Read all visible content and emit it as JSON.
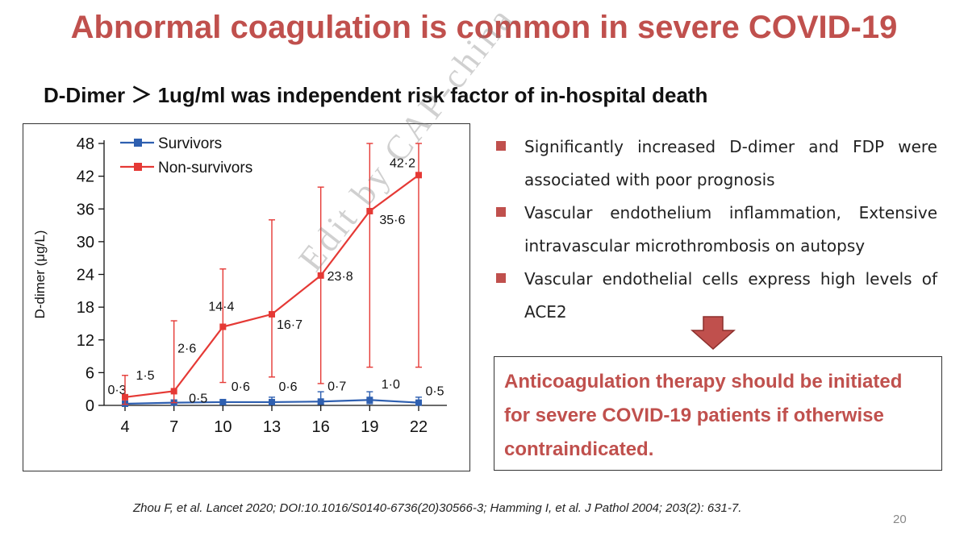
{
  "slide": {
    "title": "Abnormal coagulation is common in severe COVID-19",
    "subtitle": "D-Dimer ＞ 1ug/ml was independent risk factor of in-hospital death",
    "title_color": "#c0504d",
    "bullets": [
      "Significantly increased D-dimer and FDP were associated with poor prognosis",
      "Vascular endothelium inflammation, Extensive intravascular microthrombosis on autopsy",
      "Vascular endothelial cells express high levels of ACE2"
    ],
    "arrow_icon": "down-arrow-icon",
    "callout": "Anticoagulation therapy should be initiated for severe COVID-19 patients if otherwise contraindicated.",
    "citation": "Zhou F, et al. Lancet  2020; DOI:10.1016/S0140-6736(20)30566-3; Hamming I, et al.  J Pathol 2004; 203(2): 631-7.",
    "page_number": "20",
    "watermark": "Edit by CAP-china"
  },
  "chart_data": {
    "type": "line",
    "x": [
      4,
      7,
      10,
      13,
      16,
      19,
      22
    ],
    "xticks": [
      "4",
      "7",
      "10",
      "13",
      "16",
      "19",
      "22"
    ],
    "yticks": [
      "0",
      "6",
      "12",
      "18",
      "24",
      "30",
      "36",
      "42",
      "48"
    ],
    "ylim": [
      0,
      48
    ],
    "xlabel": "",
    "ylabel": "D-dimer (μg/L)",
    "legend_position": "top-left",
    "series": [
      {
        "name": "Survivors",
        "color": "#2e5fb0",
        "values": [
          0.3,
          0.5,
          0.6,
          0.6,
          0.7,
          1.0,
          0.5
        ],
        "labels": [
          "0·3",
          "0·5",
          "0·6",
          "0·6",
          "0·7",
          "1·0",
          "0·5"
        ],
        "err_upper": [
          0.5,
          1.0,
          1.0,
          1.5,
          2.5,
          2.5,
          1.5
        ],
        "err_lower": [
          0.1,
          0.1,
          0.2,
          0.2,
          0.2,
          0.3,
          0.2
        ]
      },
      {
        "name": "Non-survivors",
        "color": "#e53935",
        "values": [
          1.5,
          2.6,
          14.4,
          16.7,
          23.8,
          35.6,
          42.2
        ],
        "labels": [
          "1·5",
          "2·6",
          "14·4",
          "16·7",
          "23·8",
          "35·6",
          "42·2"
        ],
        "err_upper": [
          5.5,
          15.5,
          25,
          34,
          40,
          48,
          48
        ],
        "err_lower": [
          0.2,
          0.5,
          4.2,
          5.2,
          4.0,
          7.0,
          7.0
        ]
      }
    ]
  }
}
